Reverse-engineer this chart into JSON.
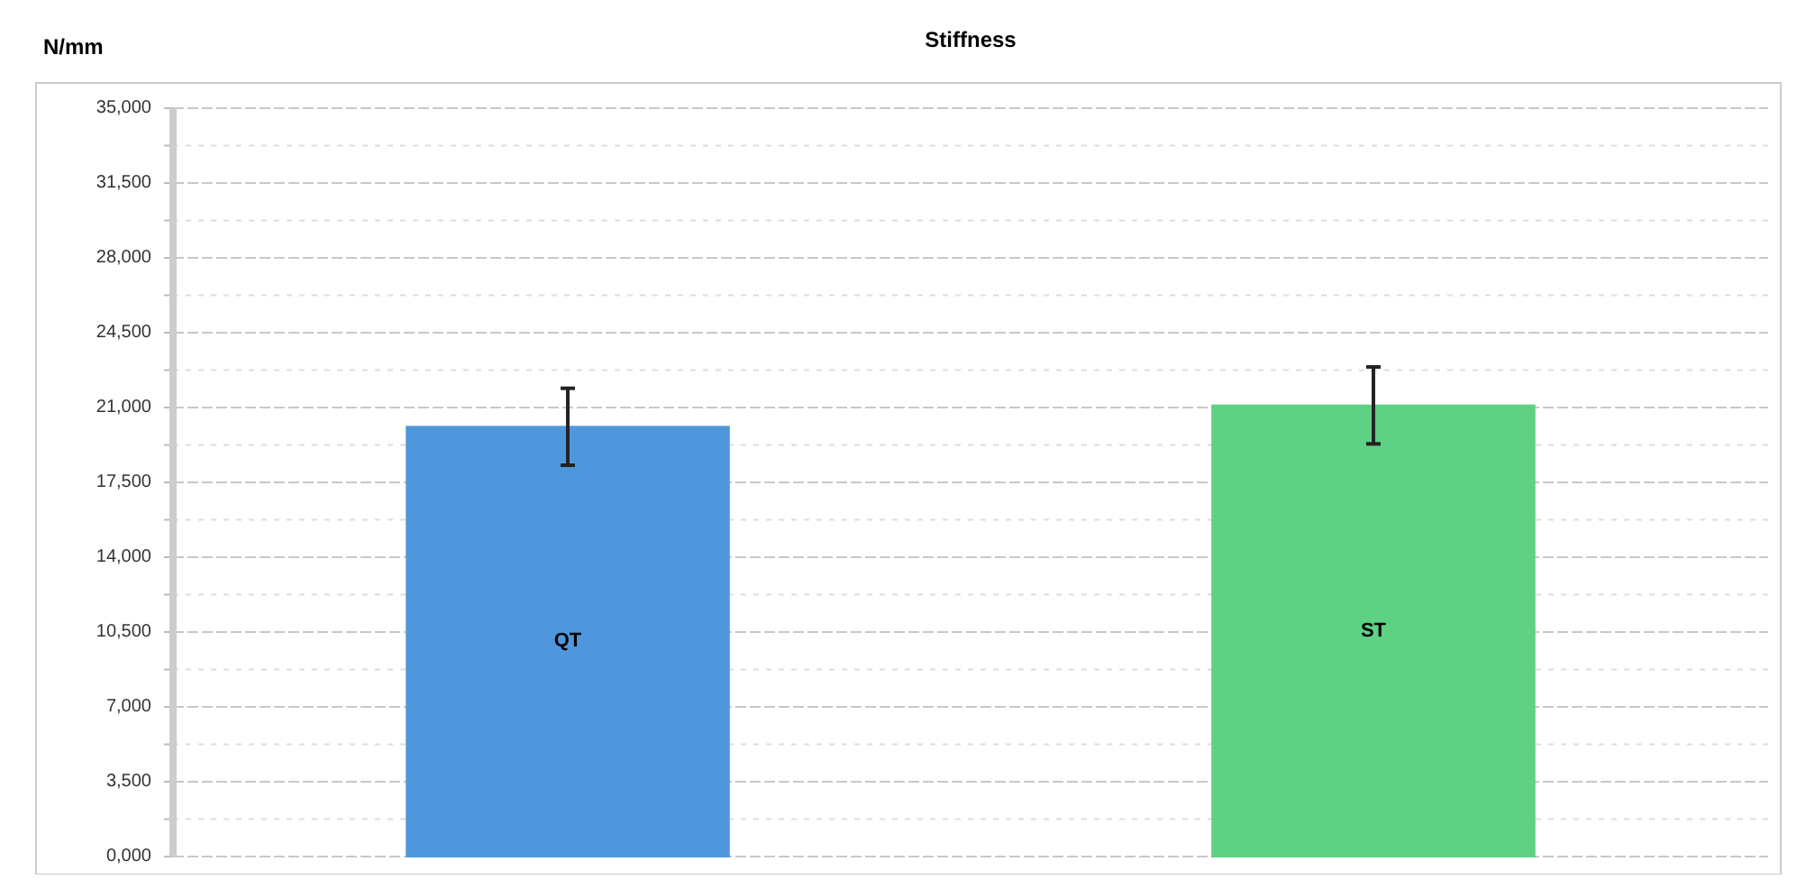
{
  "chart_data": {
    "type": "bar",
    "title": "Stiffness",
    "ylabel": "N/mm",
    "categories": [
      "QT",
      "ST"
    ],
    "values": [
      20100,
      21100
    ],
    "errors": [
      1800,
      1800
    ],
    "colors": [
      "#4f97dd",
      "#5fd184"
    ],
    "ylim": [
      0,
      35000
    ],
    "yticks": [
      {
        "value": 0,
        "label": "0,000"
      },
      {
        "value": 1750,
        "label": null
      },
      {
        "value": 3500,
        "label": "3,500"
      },
      {
        "value": 5250,
        "label": null
      },
      {
        "value": 7000,
        "label": "7,000"
      },
      {
        "value": 8750,
        "label": null
      },
      {
        "value": 10500,
        "label": "10,500"
      },
      {
        "value": 12250,
        "label": null
      },
      {
        "value": 14000,
        "label": "14,000"
      },
      {
        "value": 15750,
        "label": null
      },
      {
        "value": 17500,
        "label": "17,500"
      },
      {
        "value": 19250,
        "label": null
      },
      {
        "value": 21000,
        "label": "21,000"
      },
      {
        "value": 22750,
        "label": null
      },
      {
        "value": 24500,
        "label": "24,500"
      },
      {
        "value": 26250,
        "label": null
      },
      {
        "value": 28000,
        "label": "28,000"
      },
      {
        "value": 29750,
        "label": null
      },
      {
        "value": 31500,
        "label": "31,500"
      },
      {
        "value": 33250,
        "label": null
      },
      {
        "value": 35000,
        "label": "35,000"
      }
    ],
    "grid": "y"
  }
}
